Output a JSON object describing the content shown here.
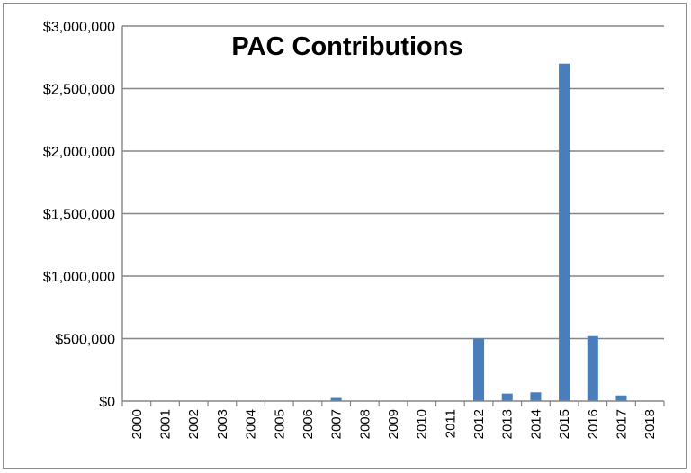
{
  "chart_data": {
    "type": "bar",
    "title": "PAC Contributions",
    "xlabel": "",
    "ylabel": "",
    "categories": [
      "2000",
      "2001",
      "2002",
      "2003",
      "2004",
      "2005",
      "2006",
      "2007",
      "2008",
      "2009",
      "2010",
      "2011",
      "2012",
      "2013",
      "2014",
      "2015",
      "2016",
      "2017",
      "2018"
    ],
    "values": [
      0,
      0,
      0,
      0,
      0,
      0,
      0,
      25000,
      0,
      0,
      0,
      0,
      500000,
      60000,
      70000,
      2700000,
      520000,
      45000,
      0
    ],
    "ylim": [
      0,
      3000000
    ],
    "yticks": [
      0,
      500000,
      1000000,
      1500000,
      2000000,
      2500000,
      3000000
    ],
    "ytick_labels": [
      "$0",
      "$500,000",
      "$1,000,000",
      "$1,500,000",
      "$2,000,000",
      "$2,500,000",
      "$3,000,000"
    ],
    "grid": true,
    "legend": "none",
    "bar_color": "#4a7ebb",
    "grid_color": "#868686"
  }
}
